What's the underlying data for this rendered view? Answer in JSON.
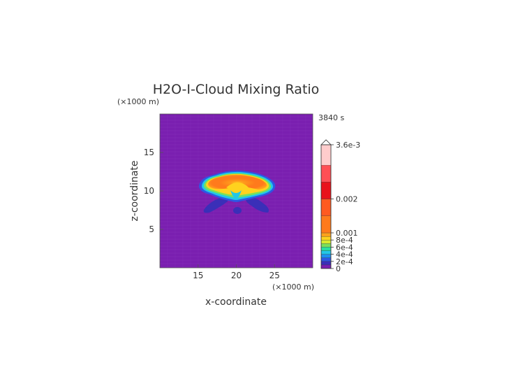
{
  "chart_data": {
    "type": "heatmap",
    "title": "H2O-I-Cloud Mixing Ratio",
    "time_label": "3840 s",
    "xlabel": "x-coordinate",
    "ylabel": "z-coordinate",
    "x_unit": "(×1000 m)",
    "y_unit": "(×1000 m)",
    "xlim": [
      10,
      30
    ],
    "ylim": [
      0,
      20
    ],
    "x_ticks": [
      15,
      20,
      25
    ],
    "y_ticks": [
      5,
      10,
      15
    ],
    "colorbar": {
      "ticks": [
        "0",
        "2e-4",
        "4e-4",
        "6e-4",
        "8e-4",
        "0.001",
        "0.002",
        "3.6e-3"
      ],
      "max_label": "3.6e-3",
      "levels": [
        0,
        0.0001,
        0.0002,
        0.0003,
        0.0004,
        0.0005,
        0.0006,
        0.0007,
        0.0008,
        0.0009,
        0.001,
        0.0015,
        0.002,
        0.0025,
        0.003,
        0.0036
      ],
      "colors": [
        "#7a1fb0",
        "#3a2fb8",
        "#2d57e3",
        "#1e8ff0",
        "#22c7e8",
        "#29e0a0",
        "#7be05a",
        "#d8ea2e",
        "#ffd21e",
        "#ffa21c",
        "#ff7a1c",
        "#ff5a20",
        "#e8121b",
        "#ff4f55",
        "#ff9da0",
        "#ffcccc"
      ]
    },
    "features": [
      {
        "name": "cloud-anvil",
        "x_center": 20.0,
        "z_center": 11.0,
        "x_halfwidth": 4.8,
        "z_halfheight": 1.4,
        "peak": 0.0015
      },
      {
        "name": "lower-plume",
        "x_center": 20.0,
        "z_center": 8.0,
        "x_halfwidth": 4.0,
        "z_halfheight": 1.0,
        "peak": 0.0001
      }
    ]
  }
}
